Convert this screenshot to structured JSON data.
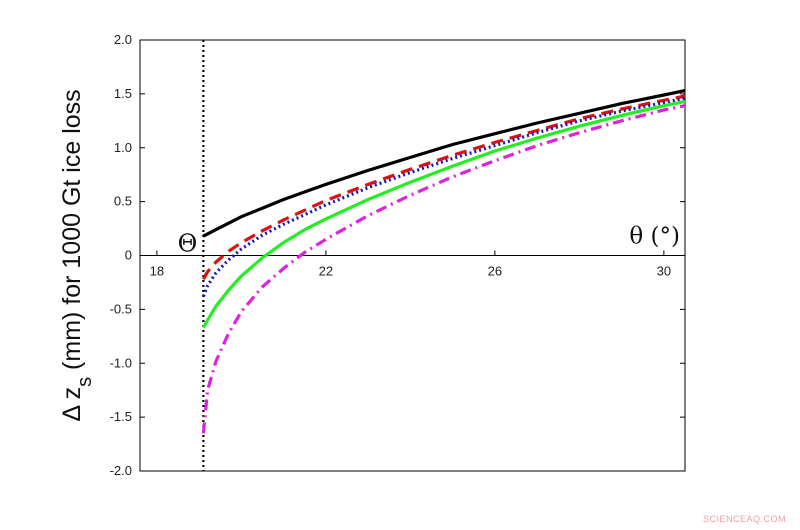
{
  "chart_data": {
    "type": "line",
    "ylabel": "Δ z",
    "ylabel_sub": "s",
    "ylabel_rest": " (mm) for 1000 Gt ice loss",
    "xvar_label": "θ (°)",
    "theta_marker_label": "Θ",
    "theta_marker_x": 19.1,
    "xlim": [
      17.6,
      30.5
    ],
    "ylim": [
      -2.0,
      2.0
    ],
    "x_ticks": [
      18,
      22,
      26,
      30
    ],
    "x_tick_labels": [
      "18",
      "22",
      "26",
      "30"
    ],
    "y_ticks": [
      -2.0,
      -1.5,
      -1.0,
      -0.5,
      0,
      0.5,
      1.0,
      1.5,
      2.0
    ],
    "y_tick_labels": [
      "-2.0",
      "-1.5",
      "-1.0",
      "-0.5",
      "0",
      "0.5",
      "1.0",
      "1.5",
      "2.0"
    ],
    "x": [
      19.1,
      19.2,
      19.4,
      19.7,
      20.0,
      20.5,
      21.0,
      21.5,
      22.0,
      23.0,
      24.0,
      25.0,
      26.0,
      27.0,
      28.0,
      29.0,
      30.0,
      30.5
    ],
    "series": [
      {
        "color": "#000000",
        "style": "solid",
        "values": [
          0.18,
          0.2,
          0.24,
          0.3,
          0.36,
          0.44,
          0.52,
          0.59,
          0.66,
          0.79,
          0.91,
          1.03,
          1.13,
          1.23,
          1.32,
          1.41,
          1.49,
          1.53
        ]
      },
      {
        "color": "#dd1111",
        "style": "dashed",
        "values": [
          -0.22,
          -0.15,
          -0.06,
          0.04,
          0.12,
          0.23,
          0.33,
          0.42,
          0.51,
          0.66,
          0.8,
          0.93,
          1.05,
          1.16,
          1.27,
          1.36,
          1.44,
          1.48
        ]
      },
      {
        "color": "#1a1aaa",
        "style": "dotted",
        "values": [
          -0.38,
          -0.28,
          -0.16,
          -0.04,
          0.06,
          0.19,
          0.29,
          0.38,
          0.47,
          0.63,
          0.77,
          0.9,
          1.02,
          1.14,
          1.25,
          1.34,
          1.42,
          1.46
        ]
      },
      {
        "color": "#22ee22",
        "style": "solid",
        "values": [
          -0.67,
          -0.6,
          -0.47,
          -0.32,
          -0.19,
          -0.02,
          0.12,
          0.24,
          0.34,
          0.52,
          0.68,
          0.83,
          0.97,
          1.09,
          1.2,
          1.3,
          1.39,
          1.43
        ]
      },
      {
        "color": "#dd22dd",
        "style": "dashdot",
        "values": [
          -1.65,
          -1.25,
          -0.98,
          -0.72,
          -0.52,
          -0.29,
          -0.12,
          0.03,
          0.15,
          0.37,
          0.56,
          0.73,
          0.88,
          1.02,
          1.14,
          1.25,
          1.35,
          1.39
        ]
      }
    ]
  },
  "watermark": "SCIENCEAQ.COM"
}
